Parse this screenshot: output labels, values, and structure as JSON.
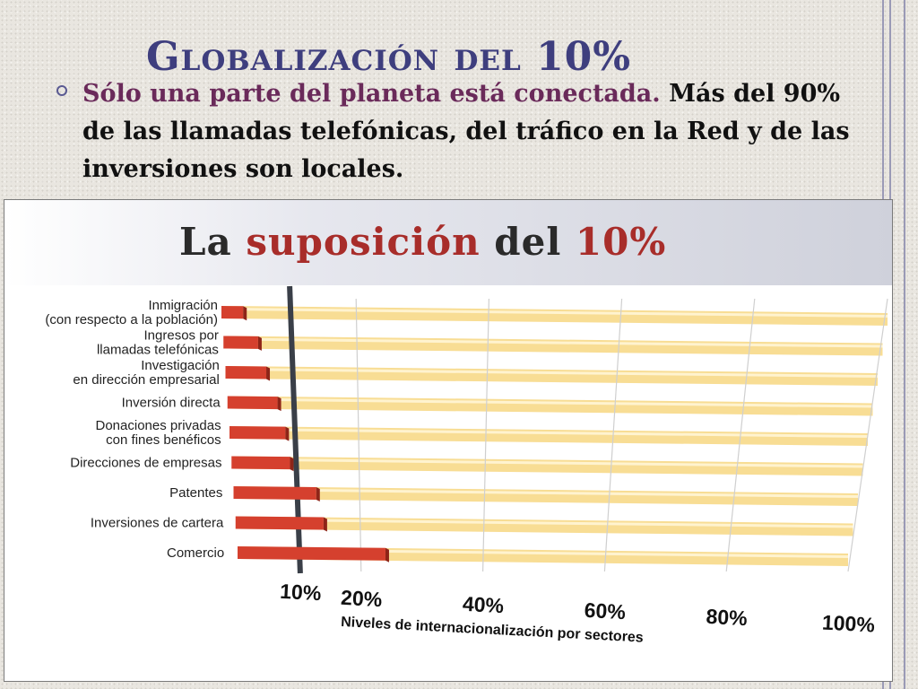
{
  "slide": {
    "title": "Globalización del 10%",
    "bullet_lead": "Sólo una parte del planeta está conectada.",
    "bullet_rest": " Más del 90% de las llamadas telefónicas, del tráfico en la Red y de las inversiones son locales."
  },
  "chart_data": {
    "type": "bar",
    "orientation": "horizontal",
    "title_parts": [
      "La",
      "suposición",
      "del",
      "10%"
    ],
    "xlabel": "Niveles de internacionalización por sectores",
    "ylabel": "",
    "xlim": [
      0,
      100
    ],
    "reference_line": 10,
    "categories": [
      [
        "Inmigración",
        "(con respecto a la población)"
      ],
      [
        "Ingresos por",
        "llamadas telefónicas"
      ],
      [
        "Investigación",
        "en dirección empresarial"
      ],
      [
        "Inversión directa"
      ],
      [
        "Donaciones privadas",
        "con fines benéficos"
      ],
      [
        "Direcciones de empresas"
      ],
      [
        "Patentes"
      ],
      [
        "Inversiones de cartera"
      ],
      [
        "Comercio"
      ]
    ],
    "values": [
      3,
      5,
      6,
      7.5,
      8.5,
      9,
      13,
      14,
      24
    ],
    "ticks": [
      {
        "value": 10,
        "label": "10%"
      },
      {
        "value": 20,
        "label": "20%"
      },
      {
        "value": 40,
        "label": "40%"
      },
      {
        "value": 60,
        "label": "60%"
      },
      {
        "value": 80,
        "label": "80%"
      },
      {
        "value": 100,
        "label": "100%"
      }
    ],
    "colors": {
      "bar": "#d5402e",
      "bar_dark": "#8e2418",
      "track": "#f8dd94",
      "track_stripe": "#fff3cf",
      "reference": "#3a3f48"
    },
    "legend": "none",
    "grid": true
  }
}
